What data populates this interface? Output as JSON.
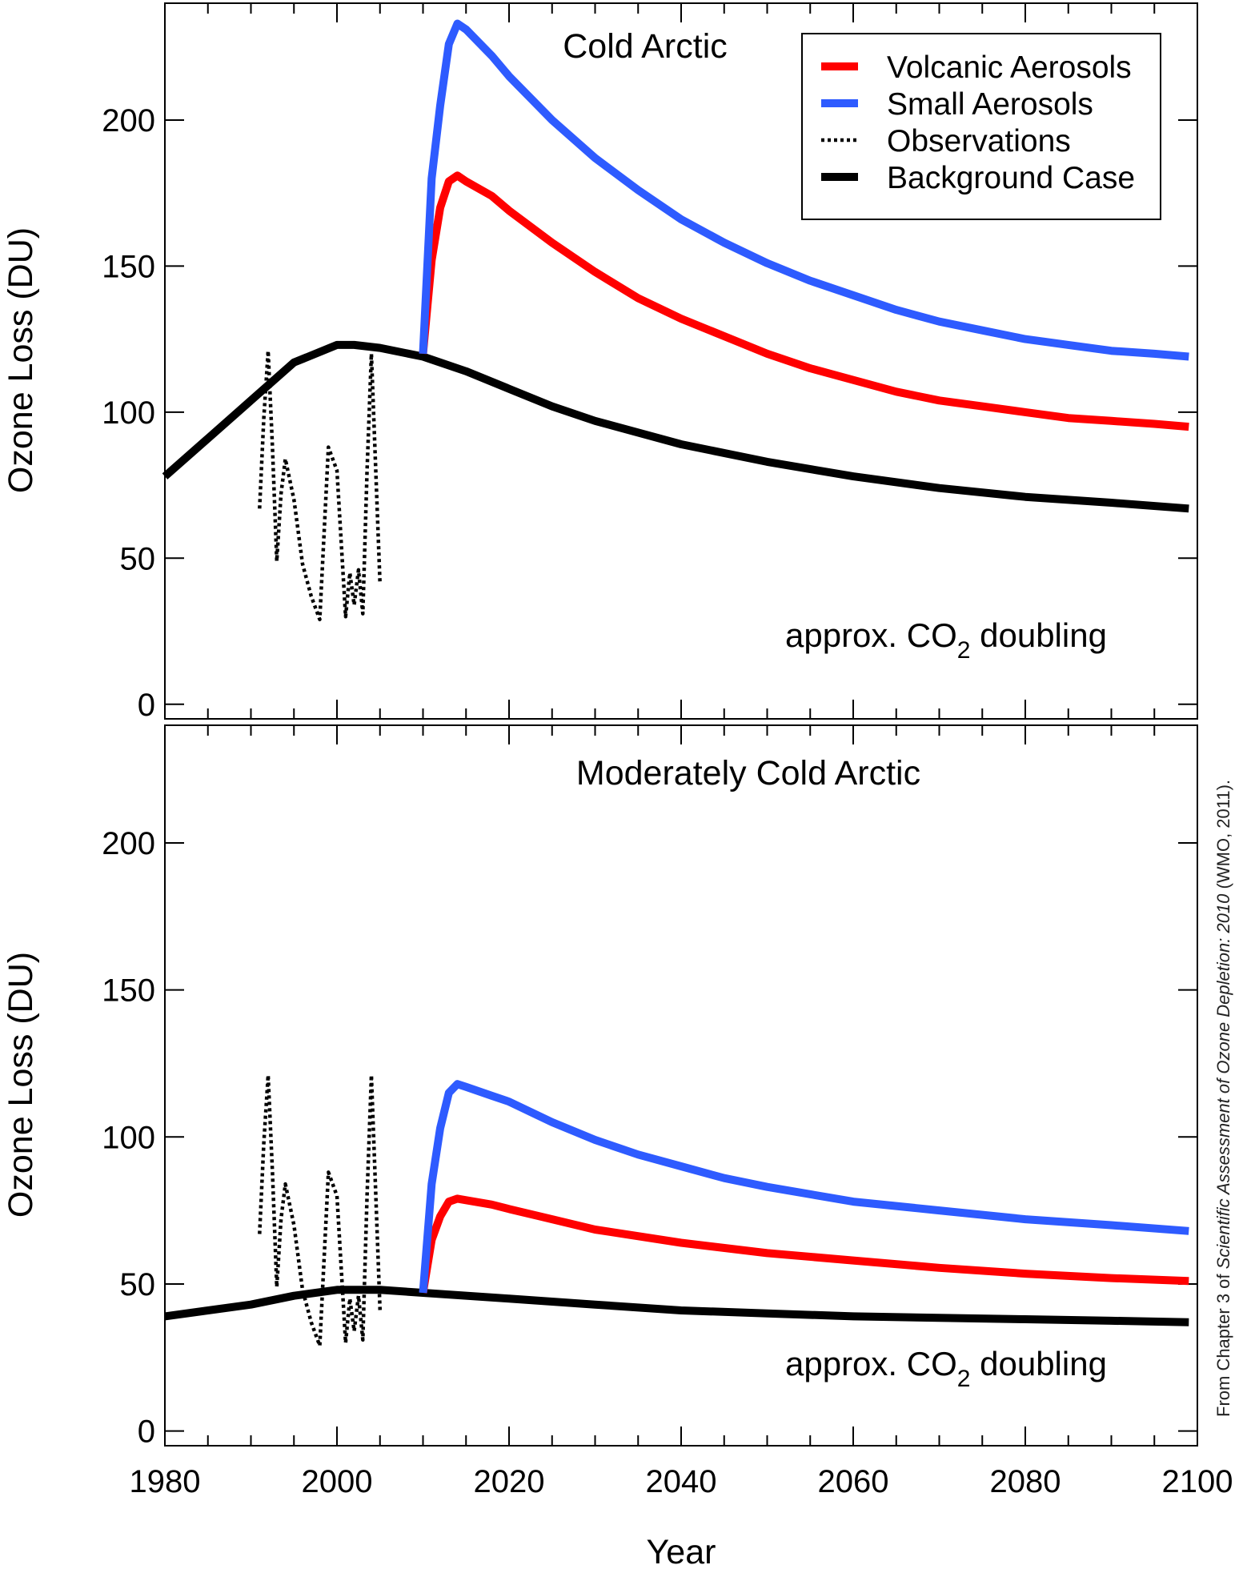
{
  "source_note": {
    "prefix": "From Chapter 3 of ",
    "italic": "Scientific Assessment of Ozone Depletion: 2010",
    "suffix": " (WMO, 2011)."
  },
  "chart_data": [
    {
      "type": "line",
      "title": "Cold Arctic",
      "annotation": {
        "pre": "approx. CO",
        "sub": "2",
        "post": " doubling"
      },
      "xlabel": "",
      "ylabel": "Ozone Loss (DU)",
      "xlim": [
        1980,
        2100
      ],
      "ylim": [
        -5,
        240
      ],
      "yticks": [
        0,
        50,
        100,
        150,
        200
      ],
      "grid": false,
      "legend": "top-right",
      "series": [
        {
          "name": "Volcanic Aerosols",
          "color": "#ff0000",
          "style": "solid",
          "x": [
            2010,
            2011,
            2012,
            2013,
            2014,
            2015,
            2018,
            2020,
            2025,
            2030,
            2035,
            2040,
            2045,
            2050,
            2055,
            2060,
            2065,
            2070,
            2075,
            2080,
            2085,
            2090,
            2095,
            2099
          ],
          "y": [
            120,
            152,
            170,
            179,
            181,
            179,
            174,
            169,
            158,
            148,
            139,
            132,
            126,
            120,
            115,
            111,
            107,
            104,
            102,
            100,
            98,
            97,
            96,
            95
          ]
        },
        {
          "name": "Small Aerosols",
          "color": "#2e5bff",
          "style": "solid",
          "x": [
            2010,
            2011,
            2012,
            2013,
            2014,
            2015,
            2018,
            2020,
            2025,
            2030,
            2035,
            2040,
            2045,
            2050,
            2055,
            2060,
            2065,
            2070,
            2075,
            2080,
            2085,
            2090,
            2095,
            2099
          ],
          "y": [
            120,
            180,
            205,
            226,
            233,
            231,
            222,
            215,
            200,
            187,
            176,
            166,
            158,
            151,
            145,
            140,
            135,
            131,
            128,
            125,
            123,
            121,
            120,
            119
          ]
        },
        {
          "name": "Observations",
          "color": "#000000",
          "style": "dotted",
          "x": [
            1991,
            1991.5,
            1992,
            1992.5,
            1993,
            1993.5,
            1994,
            1995,
            1996,
            1997,
            1998,
            1999,
            2000,
            2001,
            2001.5,
            2002,
            2002.5,
            2003,
            2003.5,
            2004,
            2005
          ],
          "y": [
            67,
            98,
            121,
            88,
            49,
            72,
            84,
            70,
            48,
            37,
            29,
            88,
            80,
            30,
            45,
            34,
            46,
            31,
            80,
            120,
            41
          ]
        },
        {
          "name": "Background Case",
          "color": "#000000",
          "style": "solid",
          "x": [
            1980,
            1985,
            1990,
            1995,
            2000,
            2002,
            2005,
            2010,
            2015,
            2020,
            2025,
            2030,
            2040,
            2050,
            2060,
            2070,
            2080,
            2090,
            2099
          ],
          "y": [
            78,
            91,
            104,
            117,
            123,
            123,
            122,
            119,
            114,
            108,
            102,
            97,
            89,
            83,
            78,
            74,
            71,
            69,
            67
          ]
        }
      ]
    },
    {
      "type": "line",
      "title": "Moderately Cold Arctic",
      "annotation": {
        "pre": "approx. CO",
        "sub": "2",
        "post": " doubling"
      },
      "xlabel": "Year",
      "ylabel": "Ozone Loss (DU)",
      "xlim": [
        1980,
        2100
      ],
      "ylim": [
        -5,
        240
      ],
      "yticks": [
        0,
        50,
        100,
        150,
        200
      ],
      "xticks": [
        1980,
        2000,
        2020,
        2040,
        2060,
        2080,
        2100
      ],
      "grid": false,
      "series": [
        {
          "name": "Volcanic Aerosols",
          "color": "#ff0000",
          "style": "solid",
          "x": [
            2010,
            2011,
            2012,
            2013,
            2014,
            2015,
            2018,
            2020,
            2025,
            2030,
            2040,
            2050,
            2060,
            2070,
            2080,
            2090,
            2099
          ],
          "y": [
            47,
            65,
            73,
            78,
            79,
            78.5,
            77,
            75.5,
            72,
            68.5,
            64,
            60.5,
            58,
            55.5,
            53.5,
            52,
            51
          ]
        },
        {
          "name": "Small Aerosols",
          "color": "#2e5bff",
          "style": "solid",
          "x": [
            2010,
            2011,
            2012,
            2013,
            2014,
            2015,
            2018,
            2020,
            2025,
            2030,
            2035,
            2040,
            2045,
            2050,
            2060,
            2070,
            2080,
            2090,
            2099
          ],
          "y": [
            47,
            84,
            103,
            115,
            118,
            117,
            114,
            112,
            105,
            99,
            94,
            90,
            86,
            83,
            78,
            75,
            72,
            70,
            68
          ]
        },
        {
          "name": "Observations",
          "color": "#000000",
          "style": "dotted",
          "x": [
            1991,
            1991.5,
            1992,
            1992.5,
            1993,
            1993.5,
            1994,
            1995,
            1996,
            1997,
            1998,
            1999,
            2000,
            2001,
            2001.5,
            2002,
            2002.5,
            2003,
            2003.5,
            2004,
            2005
          ],
          "y": [
            67,
            98,
            121,
            88,
            49,
            72,
            84,
            70,
            48,
            37,
            29,
            88,
            80,
            30,
            45,
            34,
            46,
            31,
            80,
            121,
            41
          ]
        },
        {
          "name": "Background Case",
          "color": "#000000",
          "style": "solid",
          "x": [
            1980,
            1990,
            1995,
            2000,
            2005,
            2010,
            2020,
            2030,
            2040,
            2050,
            2060,
            2070,
            2080,
            2090,
            2099
          ],
          "y": [
            39,
            43,
            46,
            48,
            48,
            47,
            45,
            43,
            41,
            40,
            39,
            38.5,
            38,
            37.5,
            37
          ]
        }
      ]
    }
  ]
}
